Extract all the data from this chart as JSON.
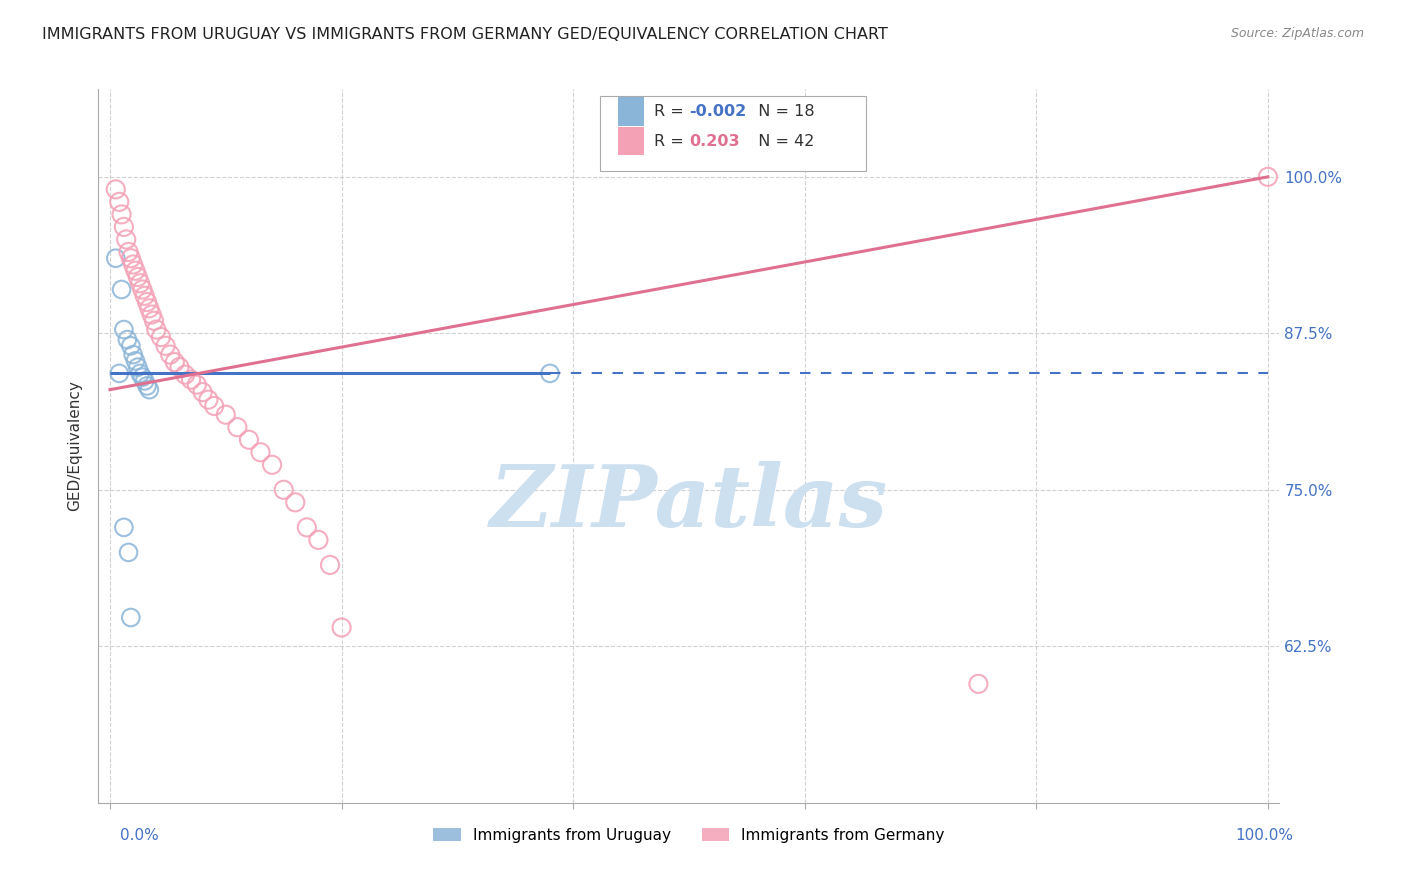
{
  "title": "IMMIGRANTS FROM URUGUAY VS IMMIGRANTS FROM GERMANY GED/EQUIVALENCY CORRELATION CHART",
  "source": "Source: ZipAtlas.com",
  "ylabel": "GED/Equivalency",
  "ytick_labels": [
    "100.0%",
    "87.5%",
    "75.0%",
    "62.5%"
  ],
  "ytick_values": [
    1.0,
    0.875,
    0.75,
    0.625
  ],
  "xlim": [
    -0.01,
    1.01
  ],
  "ylim": [
    0.5,
    1.07
  ],
  "legend_r_uruguay": "-0.002",
  "legend_n_uruguay": "18",
  "legend_r_germany": "0.203",
  "legend_n_germany": "42",
  "color_uruguay": "#8ab4d8",
  "color_germany": "#f4a0b5",
  "watermark": "ZIPatlas",
  "watermark_color": "#cde0f0",
  "background_color": "#ffffff",
  "grid_color": "#cccccc",
  "title_fontsize": 11.5,
  "axis_label_color": "#4472c4",
  "trendline_color_uruguay": "#4472c4",
  "trendline_color_germany": "#e07090",
  "uruguay_x": [
    0.005,
    0.01,
    0.012,
    0.015,
    0.018,
    0.02,
    0.022,
    0.024,
    0.026,
    0.028,
    0.03,
    0.032,
    0.034,
    0.012,
    0.016,
    0.018,
    0.38,
    0.008
  ],
  "uruguay_y": [
    0.935,
    0.91,
    0.878,
    0.87,
    0.865,
    0.858,
    0.853,
    0.848,
    0.843,
    0.84,
    0.837,
    0.833,
    0.83,
    0.72,
    0.7,
    0.648,
    0.843,
    0.843
  ],
  "germany_x": [
    0.005,
    0.008,
    0.01,
    0.012,
    0.014,
    0.016,
    0.018,
    0.02,
    0.022,
    0.024,
    0.026,
    0.028,
    0.03,
    0.032,
    0.034,
    0.036,
    0.038,
    0.04,
    0.044,
    0.048,
    0.052,
    0.056,
    0.06,
    0.065,
    0.07,
    0.075,
    0.08,
    0.085,
    0.09,
    0.1,
    0.11,
    0.12,
    0.13,
    0.14,
    0.15,
    0.16,
    0.17,
    0.18,
    0.19,
    0.2,
    0.75,
    1.0
  ],
  "germany_y": [
    0.99,
    0.98,
    0.97,
    0.96,
    0.95,
    0.94,
    0.935,
    0.93,
    0.925,
    0.92,
    0.915,
    0.91,
    0.905,
    0.9,
    0.895,
    0.89,
    0.885,
    0.878,
    0.872,
    0.865,
    0.858,
    0.852,
    0.848,
    0.842,
    0.838,
    0.834,
    0.828,
    0.822,
    0.817,
    0.81,
    0.8,
    0.79,
    0.78,
    0.77,
    0.75,
    0.74,
    0.72,
    0.71,
    0.69,
    0.64,
    0.595,
    1.0
  ],
  "trendline_uy_y0": 0.843,
  "trendline_uy_y1": 0.841,
  "trendline_ge_y0": 0.83,
  "trendline_ge_y1": 1.0
}
